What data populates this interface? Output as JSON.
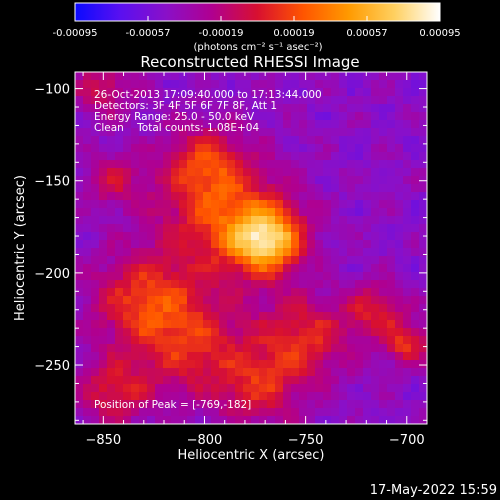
{
  "colorbar": {
    "tick_labels": [
      "-0.00095",
      "-0.00057",
      "-0.00019",
      "0.00019",
      "0.00057",
      "0.00095"
    ],
    "tick_values": [
      -0.00095,
      -0.00057,
      -0.00019,
      0.00019,
      0.00057,
      0.00095
    ],
    "range": [
      -0.00095,
      0.00095
    ],
    "units_label": "(photons cm⁻² s⁻¹ asec⁻²)",
    "stops": [
      "#0a0aff",
      "#5a10f0",
      "#8a10c8",
      "#b00090",
      "#d81030",
      "#ff5500",
      "#ff9a00",
      "#ffd060",
      "#ffffff"
    ]
  },
  "chart_data": {
    "type": "heatmap",
    "title": "Reconstructed RHESSI Image",
    "xlabel": "Heliocentric X (arcsec)",
    "ylabel": "Heliocentric Y (arcsec)",
    "xlim": [
      -864,
      -690
    ],
    "ylim": [
      -282,
      -91
    ],
    "x_ticks": [
      -850,
      -800,
      -750,
      -700
    ],
    "y_ticks": [
      -100,
      -150,
      -200,
      -250
    ],
    "x_tick_labels": [
      "−850",
      "−800",
      "−750",
      "−700"
    ],
    "y_tick_labels": [
      "−100",
      "−150",
      "−200",
      "−250"
    ],
    "peak": {
      "x": -769,
      "y": -182
    },
    "grid": false,
    "annotations": [
      "26-Oct-2013 17:09:40.000 to 17:13:44.000",
      "Detectors: 3F 4F 5F 6F 7F 8F, Att 1",
      "Energy Range: 25.0 - 50.0 keV",
      "Clean    Total counts: 1.08E+04"
    ],
    "peak_text": "Position of Peak = [-769,-182]",
    "sources": [
      {
        "x": -769,
        "y": -182,
        "amp": 0.00095,
        "sigma": 12
      },
      {
        "x": -790,
        "y": -170,
        "amp": 0.00052,
        "sigma": 22
      },
      {
        "x": -800,
        "y": -140,
        "amp": 0.00035,
        "sigma": 14
      },
      {
        "x": -830,
        "y": -215,
        "amp": 0.00045,
        "sigma": 18
      },
      {
        "x": -805,
        "y": -240,
        "amp": 0.0004,
        "sigma": 20
      },
      {
        "x": -750,
        "y": -235,
        "amp": 0.00042,
        "sigma": 16
      },
      {
        "x": -772,
        "y": -262,
        "amp": 0.00035,
        "sigma": 14
      },
      {
        "x": -845,
        "y": -265,
        "amp": 0.00038,
        "sigma": 12
      },
      {
        "x": -700,
        "y": -238,
        "amp": 0.00045,
        "sigma": 8
      },
      {
        "x": -715,
        "y": -220,
        "amp": 0.00035,
        "sigma": 10
      },
      {
        "x": -850,
        "y": -100,
        "amp": 0.0003,
        "sigma": 10
      },
      {
        "x": -845,
        "y": -150,
        "amp": 0.00028,
        "sigma": 10
      }
    ]
  },
  "timestamp": "17-May-2022 15:59"
}
